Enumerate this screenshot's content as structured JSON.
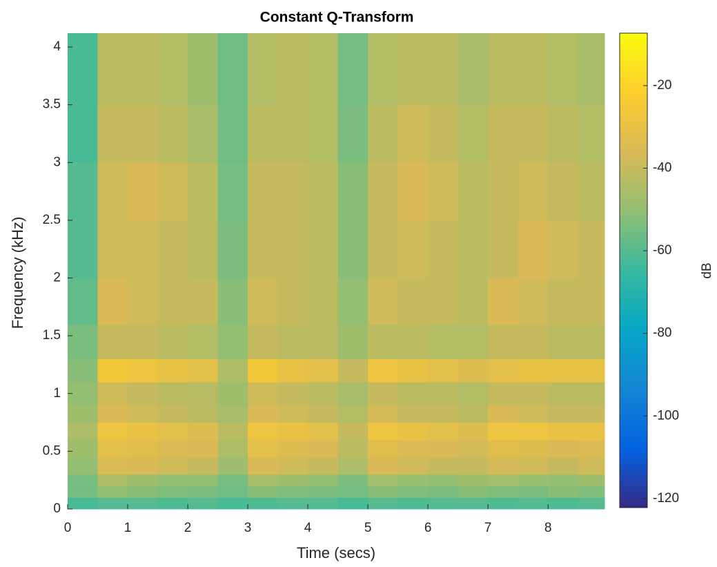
{
  "chart_data": {
    "type": "heatmap",
    "title": "Constant Q-Transform",
    "x_label": "Time (secs)",
    "y_label": "Frequency (kHz)",
    "colorbar_label": "dB",
    "xlim": [
      0,
      8.94
    ],
    "xticks": [
      0,
      1,
      2,
      3,
      4,
      5,
      6,
      7,
      8
    ],
    "ylim": [
      0,
      4.12
    ],
    "yticks": [
      0,
      0.5,
      1,
      1.5,
      2,
      2.5,
      3,
      3.5,
      4
    ],
    "clim": [
      -122.2,
      -7.3
    ],
    "cticks": [
      -120,
      -100,
      -80,
      -60,
      -40,
      -20
    ],
    "colormap": [
      "#352a87",
      "#0363e1",
      "#1485d4",
      "#06a7c6",
      "#38b99e",
      "#92bf73",
      "#d9ba56",
      "#fcce2e",
      "#f9fb0e"
    ],
    "xbins": [
      0,
      0.5,
      1,
      1.5,
      2,
      2.5,
      3,
      3.5,
      4,
      4.5,
      5,
      5.5,
      6,
      6.5,
      7,
      7.5,
      8,
      8.5,
      8.94
    ],
    "ybins": [
      0,
      0.1,
      0.2,
      0.3,
      0.45,
      0.6,
      0.75,
      0.9,
      1.1,
      1.3,
      1.6,
      2,
      2.5,
      3,
      3.5,
      4.12
    ],
    "values": [
      [
        -62,
        -60,
        -60,
        -61,
        -60,
        -62,
        -61,
        -60,
        -60,
        -62,
        -60,
        -61,
        -60,
        -60,
        -61,
        -60,
        -61,
        -60
      ],
      [
        -55,
        -50,
        -52,
        -53,
        -54,
        -56,
        -52,
        -53,
        -54,
        -55,
        -52,
        -53,
        -54,
        -52,
        -53,
        -54,
        -52,
        -53
      ],
      [
        -55,
        -45,
        -48,
        -50,
        -50,
        -55,
        -46,
        -48,
        -50,
        -54,
        -47,
        -49,
        -50,
        -48,
        -47,
        -49,
        -50,
        -48
      ],
      [
        -50,
        -35,
        -36,
        -38,
        -40,
        -48,
        -36,
        -38,
        -40,
        -45,
        -36,
        -38,
        -40,
        -40,
        -37,
        -38,
        -40,
        -38
      ],
      [
        -48,
        -32,
        -33,
        -35,
        -36,
        -45,
        -32,
        -34,
        -36,
        -42,
        -33,
        -35,
        -36,
        -37,
        -33,
        -34,
        -36,
        -35
      ],
      [
        -45,
        -28,
        -30,
        -32,
        -34,
        -42,
        -28,
        -30,
        -32,
        -40,
        -28,
        -30,
        -32,
        -34,
        -28,
        -28,
        -30,
        -30
      ],
      [
        -48,
        -36,
        -38,
        -40,
        -42,
        -46,
        -36,
        -38,
        -40,
        -44,
        -37,
        -40,
        -40,
        -42,
        -36,
        -38,
        -40,
        -40
      ],
      [
        -50,
        -38,
        -40,
        -42,
        -43,
        -48,
        -38,
        -40,
        -42,
        -46,
        -40,
        -42,
        -42,
        -44,
        -40,
        -40,
        -42,
        -42
      ],
      [
        -52,
        -26,
        -28,
        -30,
        -32,
        -45,
        -26,
        -30,
        -32,
        -40,
        -28,
        -30,
        -32,
        -34,
        -32,
        -30,
        -30,
        -30
      ],
      [
        -54,
        -40,
        -40,
        -42,
        -44,
        -50,
        -40,
        -42,
        -42,
        -48,
        -42,
        -42,
        -44,
        -44,
        -40,
        -40,
        -42,
        -42
      ],
      [
        -58,
        -36,
        -38,
        -40,
        -40,
        -52,
        -38,
        -40,
        -42,
        -50,
        -38,
        -40,
        -40,
        -42,
        -36,
        -38,
        -40,
        -40
      ],
      [
        -60,
        -38,
        -38,
        -40,
        -42,
        -54,
        -40,
        -40,
        -42,
        -52,
        -40,
        -38,
        -40,
        -42,
        -40,
        -36,
        -38,
        -40
      ],
      [
        -60,
        -38,
        -36,
        -38,
        -42,
        -55,
        -40,
        -40,
        -42,
        -52,
        -40,
        -36,
        -38,
        -42,
        -40,
        -38,
        -40,
        -42
      ],
      [
        -62,
        -40,
        -40,
        -42,
        -46,
        -56,
        -42,
        -42,
        -44,
        -54,
        -42,
        -38,
        -40,
        -44,
        -40,
        -40,
        -42,
        -44
      ],
      [
        -62,
        -42,
        -42,
        -44,
        -48,
        -56,
        -44,
        -42,
        -44,
        -55,
        -44,
        -42,
        -42,
        -46,
        -42,
        -42,
        -44,
        -46
      ]
    ]
  }
}
